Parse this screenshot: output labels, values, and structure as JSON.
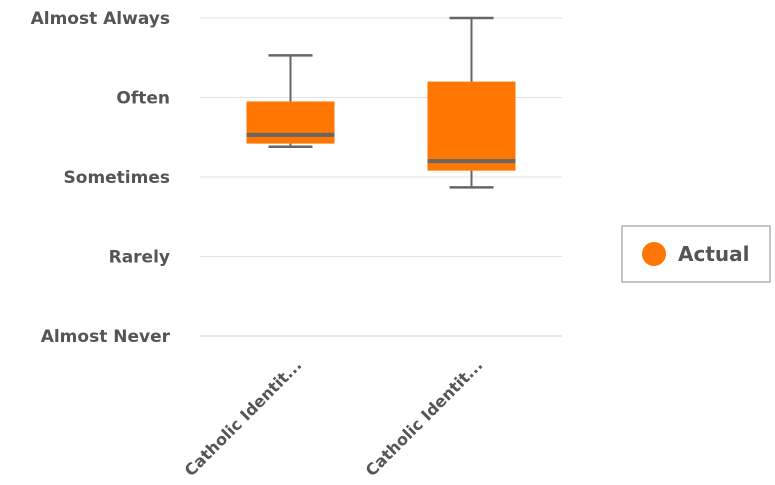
{
  "chart_data": {
    "type": "box",
    "title": "",
    "xlabel": "",
    "ylabel": "",
    "y_levels": [
      "Almost Never",
      "Rarely",
      "Sometimes",
      "Often",
      "Almost Always"
    ],
    "ylim": [
      1,
      5
    ],
    "categories": [
      "Catholic Identit...",
      "Catholic Identit..."
    ],
    "series": [
      {
        "name": "Actual",
        "color": "#ff7700",
        "boxes": [
          {
            "min": 3.38,
            "q1": 3.42,
            "median": 3.53,
            "q3": 3.95,
            "max": 4.53
          },
          {
            "min": 2.87,
            "q1": 3.08,
            "median": 3.2,
            "q3": 4.2,
            "max": 5.0
          }
        ]
      }
    ],
    "whisker_color": "#666666",
    "median_color": "#666666",
    "grid": true,
    "legend_position": "right"
  }
}
